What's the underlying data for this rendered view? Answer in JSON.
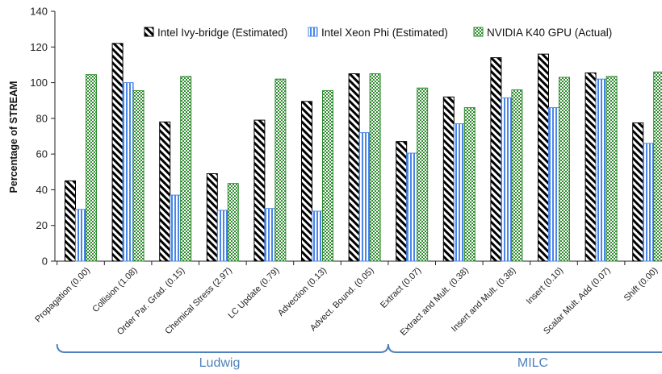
{
  "chart_data": {
    "type": "bar",
    "ylabel": "Percentage of STREAM",
    "xlabel": "",
    "ylim": [
      0,
      140
    ],
    "yticks": [
      0,
      20,
      40,
      60,
      80,
      100,
      120,
      140
    ],
    "grid": false,
    "legend_position": "top",
    "categories": [
      "Propagation (0.00)",
      "Collision (1.08)",
      "Order Par. Grad. (0.15)",
      "Chemical Stress (2.97)",
      "LC Update (0.79)",
      "Advection (0.13)",
      "Advect. Bound. (0.05)",
      "Extract (0.07)",
      "Extract and Mult. (0.38)",
      "Insert and Mult. (0.38)",
      "Insert (0.10)",
      "Scalar Mult. Add (0.07)",
      "Shift (0.00)"
    ],
    "series": [
      {
        "name": "Intel Ivy-bridge (Estimated)",
        "pattern": "hatch",
        "color": "#000000",
        "values": [
          45,
          122,
          78,
          49,
          79,
          89.5,
          105,
          67,
          92,
          114,
          116,
          105.5,
          77.5
        ]
      },
      {
        "name": "Intel Xeon Phi (Estimated)",
        "pattern": "stripes",
        "color": "#4a86e8",
        "values": [
          29,
          100,
          37,
          28.5,
          29.5,
          28,
          72,
          60.5,
          77,
          91.5,
          86,
          102,
          66
        ]
      },
      {
        "name": "NVIDIA K40 GPU (Actual)",
        "pattern": "checker",
        "color": "#2e8b2e",
        "values": [
          104.5,
          95.5,
          103.5,
          43.5,
          102,
          95.5,
          105,
          97,
          86,
          96,
          103,
          103.5,
          106
        ]
      }
    ],
    "groups": [
      {
        "label": "Ludwig",
        "from": 0,
        "to": 6
      },
      {
        "label": "MILC",
        "from": 7,
        "to": 12
      }
    ]
  }
}
